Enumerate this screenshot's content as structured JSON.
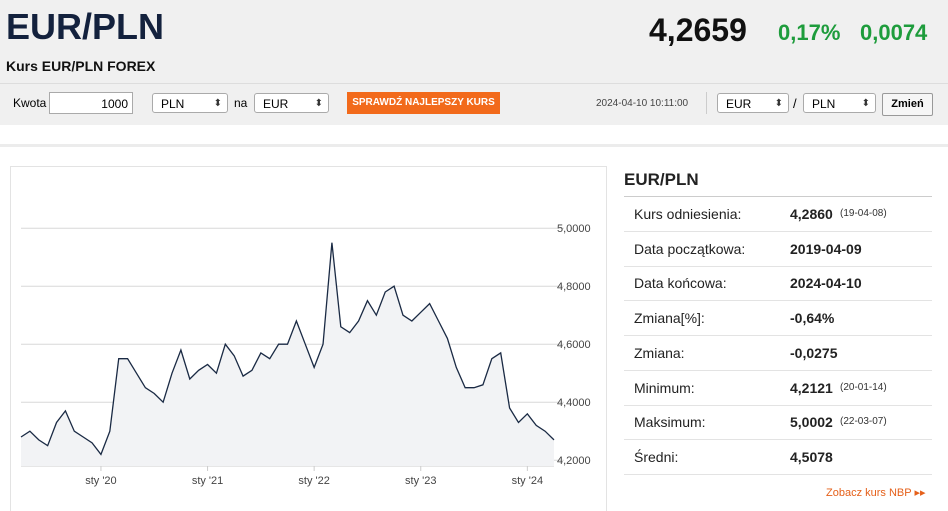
{
  "header": {
    "title": "EUR/PLN",
    "price": "4,2659",
    "change_pct": "0,17%",
    "change_abs": "0,0074",
    "subtitle": "Kurs EUR/PLN FOREX"
  },
  "converter": {
    "amount_label": "Kwota",
    "amount": "1000",
    "from": "PLN",
    "to_label": "na",
    "to": "EUR",
    "button": "SPRAWDŹ NAJLEPSZY KURS",
    "timestamp": "2024-04-10 10:11:00",
    "pair_from": "EUR",
    "separator": "/",
    "pair_to": "PLN",
    "swap_button": "Zmień"
  },
  "chart_data": {
    "type": "line",
    "color": "#1a2a44",
    "grid": true,
    "x": [
      "2019-04",
      "2019-05",
      "2019-06",
      "2019-07",
      "2019-08",
      "2019-09",
      "2019-10",
      "2019-11",
      "2019-12",
      "2020-01",
      "2020-02",
      "2020-03",
      "2020-04",
      "2020-05",
      "2020-06",
      "2020-07",
      "2020-08",
      "2020-09",
      "2020-10",
      "2020-11",
      "2020-12",
      "2021-01",
      "2021-02",
      "2021-03",
      "2021-04",
      "2021-05",
      "2021-06",
      "2021-07",
      "2021-08",
      "2021-09",
      "2021-10",
      "2021-11",
      "2021-12",
      "2022-01",
      "2022-02",
      "2022-03",
      "2022-04",
      "2022-05",
      "2022-06",
      "2022-07",
      "2022-08",
      "2022-09",
      "2022-10",
      "2022-11",
      "2022-12",
      "2023-01",
      "2023-02",
      "2023-03",
      "2023-04",
      "2023-05",
      "2023-06",
      "2023-07",
      "2023-08",
      "2023-09",
      "2023-10",
      "2023-11",
      "2023-12",
      "2024-01",
      "2024-02",
      "2024-03",
      "2024-04"
    ],
    "values": [
      4.28,
      4.3,
      4.27,
      4.25,
      4.33,
      4.37,
      4.3,
      4.28,
      4.26,
      4.22,
      4.3,
      4.55,
      4.55,
      4.5,
      4.45,
      4.43,
      4.4,
      4.5,
      4.58,
      4.48,
      4.51,
      4.53,
      4.5,
      4.6,
      4.56,
      4.49,
      4.51,
      4.57,
      4.55,
      4.6,
      4.6,
      4.68,
      4.6,
      4.52,
      4.6,
      4.95,
      4.66,
      4.64,
      4.68,
      4.75,
      4.7,
      4.78,
      4.8,
      4.7,
      4.68,
      4.71,
      4.74,
      4.68,
      4.62,
      4.52,
      4.45,
      4.45,
      4.46,
      4.55,
      4.57,
      4.38,
      4.33,
      4.36,
      4.32,
      4.3,
      4.27
    ],
    "ylim": [
      4.18,
      5.18
    ],
    "yticks": [
      {
        "value": 4.2,
        "label": "4,2000"
      },
      {
        "value": 4.4,
        "label": "4,4000"
      },
      {
        "value": 4.6,
        "label": "4,6000"
      },
      {
        "value": 4.8,
        "label": "4,8000"
      },
      {
        "value": 5.0,
        "label": "5,0000"
      }
    ],
    "xticks": [
      {
        "value": "2020-01",
        "label": "sty '20"
      },
      {
        "value": "2021-01",
        "label": "sty '21"
      },
      {
        "value": "2022-01",
        "label": "sty '22"
      },
      {
        "value": "2023-01",
        "label": "sty '23"
      },
      {
        "value": "2024-01",
        "label": "sty '24"
      }
    ]
  },
  "stats": {
    "title": "EUR/PLN",
    "rows": [
      {
        "label": "Kurs odniesienia:",
        "value": "4,2860",
        "date": "(19-04-08)"
      },
      {
        "label": "Data początkowa:",
        "value": "2019-04-09"
      },
      {
        "label": "Data końcowa:",
        "value": "2024-04-10"
      },
      {
        "label": "Zmiana[%]:",
        "value": "-0,64%"
      },
      {
        "label": "Zmiana:",
        "value": "-0,0275"
      },
      {
        "label": "Minimum:",
        "value": "4,2121",
        "date": "(20-01-14)"
      },
      {
        "label": "Maksimum:",
        "value": "5,0002",
        "date": "(22-03-07)"
      },
      {
        "label": "Średni:",
        "value": "4,5078"
      }
    ],
    "link": "Zobacz kurs NBP ▸▸"
  }
}
